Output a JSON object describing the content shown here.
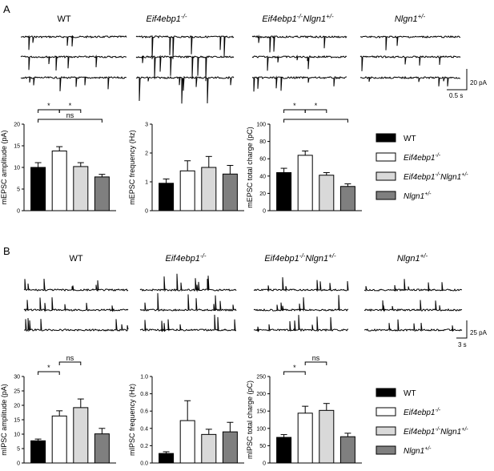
{
  "panels": [
    {
      "letter": "A",
      "genotypes": [
        {
          "main": "WT",
          "sup": "",
          "italic": false
        },
        {
          "main": "Eif4ebp1",
          "sup": "-/-",
          "italic": true
        },
        {
          "main": "Eif4ebp1",
          "sup": "-/-",
          "main2": "Nlgn1",
          "sup2": "+/-",
          "italic": true
        },
        {
          "main": "Nlgn1",
          "sup": "+/-",
          "italic": true
        }
      ],
      "trace_scale": {
        "amplitude": "20 pA",
        "time": "0.5 s"
      }
    },
    {
      "letter": "B",
      "genotypes": [
        {
          "main": "WT",
          "sup": "",
          "italic": false
        },
        {
          "main": "Eif4ebp1",
          "sup": "-/-",
          "italic": true
        },
        {
          "main": "Eif4ebp1",
          "sup": "-/-",
          "main2": "Nlgn1",
          "sup2": "+/-",
          "italic": true
        },
        {
          "main": "Nlgn1",
          "sup": "+/-",
          "italic": true
        }
      ],
      "trace_scale": {
        "amplitude": "25 pA",
        "time": "3 s"
      }
    }
  ],
  "legend": [
    {
      "main": "WT",
      "sup": "",
      "color": "#000000",
      "italic": false
    },
    {
      "main": "Eif4ebp1",
      "sup": "-/-",
      "color": "#ffffff",
      "italic": true
    },
    {
      "main": "Eif4ebp1",
      "sup": "-/-",
      "main2": "Nlgn1",
      "sup2": "+/-",
      "color": "#d9d9d9",
      "italic": true
    },
    {
      "main": "Nlgn1",
      "sup": "+/-",
      "color": "#7f7f7f",
      "italic": true
    }
  ],
  "chart_data": [
    {
      "type": "bar",
      "panel": "A",
      "ylabel": "mEPSC amplitude (pA)",
      "ylim": [
        0,
        20
      ],
      "yticks": [
        0,
        5,
        10,
        15,
        20
      ],
      "values": [
        10.0,
        13.8,
        10.2,
        7.8
      ],
      "errors": [
        1.1,
        1.0,
        0.9,
        0.6
      ],
      "brackets": [
        {
          "from": 0,
          "to": 1,
          "label": "*",
          "tier": 1
        },
        {
          "from": 1,
          "to": 2,
          "label": "*",
          "tier": 1
        },
        {
          "from": 0,
          "to": 3,
          "label": "ns",
          "tier": 0
        }
      ]
    },
    {
      "type": "bar",
      "panel": "A",
      "ylabel": "mEPSC frequency (Hz)",
      "ylim": [
        0,
        3
      ],
      "yticks": [
        0,
        1,
        2,
        3
      ],
      "values": [
        0.95,
        1.38,
        1.5,
        1.27
      ],
      "errors": [
        0.15,
        0.35,
        0.38,
        0.3
      ],
      "brackets": []
    },
    {
      "type": "bar",
      "panel": "A",
      "ylabel": "mEPSC total charge (pC)",
      "ylim": [
        0,
        100
      ],
      "yticks": [
        0,
        20,
        40,
        60,
        80,
        100
      ],
      "values": [
        44,
        64,
        41,
        28
      ],
      "errors": [
        5,
        5,
        3,
        3
      ],
      "brackets": [
        {
          "from": 0,
          "to": 1,
          "label": "*",
          "tier": 1
        },
        {
          "from": 1,
          "to": 2,
          "label": "*",
          "tier": 1
        },
        {
          "from": 0,
          "to": 3,
          "label": "",
          "tier": 0
        }
      ]
    },
    {
      "type": "bar",
      "panel": "B",
      "ylabel": "mIPSC amplitude (pA)",
      "ylim": [
        0,
        30
      ],
      "yticks": [
        0,
        5,
        10,
        15,
        20,
        25,
        30
      ],
      "values": [
        7.7,
        16.3,
        19.2,
        10.1
      ],
      "errors": [
        0.6,
        1.8,
        3.0,
        1.9
      ],
      "brackets": [
        {
          "from": 0,
          "to": 1,
          "label": "*",
          "tier": 0
        },
        {
          "from": 1,
          "to": 2,
          "label": "ns",
          "tier": 1
        }
      ]
    },
    {
      "type": "bar",
      "panel": "B",
      "ylabel": "mIPSC frequency (Hz)",
      "ylim": [
        0,
        1.0
      ],
      "yticks": [
        0.0,
        0.2,
        0.4,
        0.6,
        0.8,
        1.0
      ],
      "values": [
        0.11,
        0.49,
        0.33,
        0.36
      ],
      "errors": [
        0.02,
        0.23,
        0.06,
        0.11
      ],
      "brackets": []
    },
    {
      "type": "bar",
      "panel": "B",
      "ylabel": "mIPSC total charge (pC)",
      "ylim": [
        0,
        250
      ],
      "yticks": [
        0,
        50,
        100,
        150,
        200,
        250
      ],
      "values": [
        74,
        144,
        152,
        76
      ],
      "errors": [
        8,
        20,
        20,
        10
      ],
      "brackets": [
        {
          "from": 0,
          "to": 1,
          "label": "*",
          "tier": 0
        },
        {
          "from": 1,
          "to": 2,
          "label": "ns",
          "tier": 1
        }
      ]
    }
  ]
}
